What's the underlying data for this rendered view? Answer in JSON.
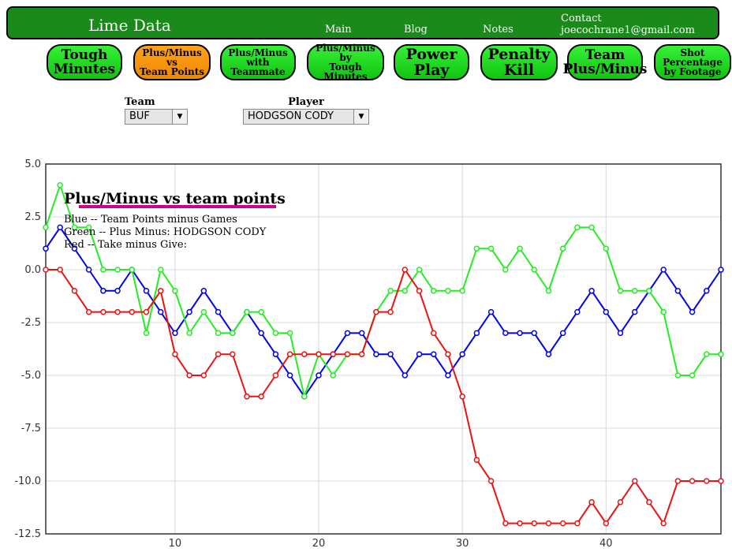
{
  "header": {
    "brand": "Lime Data",
    "nav": [
      "Main",
      "Blog",
      "Notes"
    ],
    "contact_label": "Contact",
    "contact_email": "joecochrane1@gmail.com"
  },
  "tabs": [
    {
      "label": "Tough\nMinutes",
      "active": false
    },
    {
      "label": "Plus/Minus\nvs\nTeam Points",
      "active": true
    },
    {
      "label": "Plus/Minus\nwith\nTeammate",
      "active": false
    },
    {
      "label": "Plus/Minus\nby\nTough Minutes",
      "active": false
    },
    {
      "label": "Power\nPlay",
      "active": false
    },
    {
      "label": "Penalty\nKill",
      "active": false
    },
    {
      "label": "Team\nPlus/Minus",
      "active": false
    },
    {
      "label": "Shot\nPercentage\nby Footage",
      "active": false
    }
  ],
  "filters": {
    "team_label": "Team",
    "team_value": "BUF",
    "player_label": "Player",
    "player_value": "HODGSON CODY"
  },
  "chart_data": {
    "type": "line",
    "title": "Plus/Minus vs team points",
    "legend_lines": [
      "Blue -- Team Points minus Games",
      "Green -- Plus Minus: HODGSON CODY",
      "Red -- Take minus Give:"
    ],
    "title_underline_color": "#cc0088",
    "xlim": [
      1,
      48
    ],
    "ylim": [
      -12.5,
      5
    ],
    "x_ticks": [
      10,
      20,
      30,
      40
    ],
    "y_ticks": [
      5.0,
      2.5,
      0.0,
      -2.5,
      -5.0,
      -7.5,
      -10.0,
      -12.5
    ],
    "grid": true,
    "series": [
      {
        "color": "#0000ee",
        "values": [
          1,
          2,
          1,
          0,
          -1,
          -1,
          0,
          -1,
          -2,
          -3,
          -2,
          -1,
          -2,
          -3,
          -2,
          -3,
          -4,
          -5,
          -6,
          -5,
          -4,
          -3,
          -3,
          -4,
          -4,
          -5,
          -4,
          -4,
          -5,
          -4,
          -3,
          -2,
          -3,
          -3,
          -3,
          -4,
          -3,
          -2,
          -1,
          -2,
          -3,
          -2,
          -1,
          0,
          -1,
          -2,
          -1,
          0
        ]
      },
      {
        "color": "#22ee22",
        "values": [
          2,
          4,
          2,
          2,
          0,
          0,
          0,
          -3,
          0,
          -1,
          -3,
          -2,
          -3,
          -3,
          -2,
          -2,
          -3,
          -3,
          -6,
          -4,
          -5,
          -4,
          -4,
          -2,
          -1,
          -1,
          0,
          -1,
          -1,
          -1,
          1,
          1,
          0,
          1,
          0,
          -1,
          1,
          2,
          2,
          1,
          -1,
          -1,
          -1,
          -2,
          -5,
          -5,
          -4,
          -4
        ]
      },
      {
        "color": "#ee1111",
        "values": [
          0,
          0,
          -1,
          -2,
          -2,
          -2,
          -2,
          -2,
          -1,
          -4,
          -5,
          -5,
          -4,
          -4,
          -6,
          -6,
          -5,
          -4,
          -4,
          -4,
          -4,
          -4,
          -4,
          -2,
          -2,
          0,
          -1,
          -3,
          -4,
          -6,
          -9,
          -10,
          -12,
          -12,
          -12,
          -12,
          -12,
          -12,
          -11,
          -12,
          -11,
          -10,
          -11,
          -12,
          -10,
          -10,
          -10,
          -10
        ]
      }
    ]
  }
}
